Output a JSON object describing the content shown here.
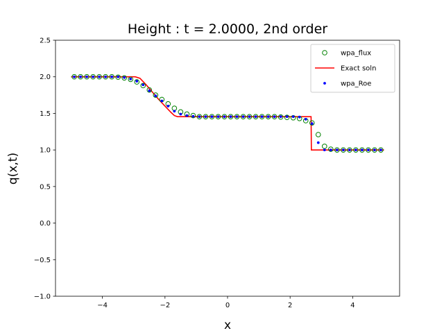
{
  "chart_data": {
    "type": "scatter",
    "title": "Height : t = 2.0000, 2nd order",
    "xlabel": "x",
    "ylabel": "q(x,t)",
    "xlim": [
      -5.5,
      5.5
    ],
    "ylim": [
      -1.0,
      2.5
    ],
    "xticks": [
      -4,
      -2,
      0,
      2,
      4
    ],
    "xtick_labels": [
      "−4",
      "−2",
      "0",
      "2",
      "4"
    ],
    "yticks": [
      -1.0,
      -0.5,
      0.0,
      0.5,
      1.0,
      1.5,
      2.0,
      2.5
    ],
    "ytick_labels": [
      "−1.0",
      "−0.5",
      "0.0",
      "0.5",
      "1.0",
      "1.5",
      "2.0",
      "2.5"
    ],
    "grid": false,
    "legend_position": "top-right",
    "x": [
      -4.9,
      -4.7,
      -4.5,
      -4.3,
      -4.1,
      -3.9,
      -3.7,
      -3.5,
      -3.3,
      -3.1,
      -2.9,
      -2.7,
      -2.5,
      -2.3,
      -2.1,
      -1.9,
      -1.7,
      -1.5,
      -1.3,
      -1.1,
      -0.9,
      -0.7,
      -0.5,
      -0.3,
      -0.1,
      0.1,
      0.3,
      0.5,
      0.7,
      0.9,
      1.1,
      1.3,
      1.5,
      1.7,
      1.9,
      2.1,
      2.3,
      2.5,
      2.7,
      2.9,
      3.1,
      3.3,
      3.5,
      3.7,
      3.9,
      4.1,
      4.3,
      4.5,
      4.7,
      4.9
    ],
    "series": [
      {
        "name": "wpa_flux",
        "style": "open-circle",
        "color": "#008000",
        "values": [
          2.0,
          2.0,
          2.0,
          2.0,
          2.0,
          2.0,
          2.0,
          1.995,
          1.985,
          1.965,
          1.93,
          1.88,
          1.82,
          1.75,
          1.69,
          1.63,
          1.57,
          1.52,
          1.49,
          1.47,
          1.455,
          1.455,
          1.455,
          1.455,
          1.455,
          1.455,
          1.455,
          1.455,
          1.455,
          1.455,
          1.455,
          1.455,
          1.455,
          1.45,
          1.445,
          1.44,
          1.43,
          1.4,
          1.37,
          1.21,
          1.05,
          1.01,
          1.0,
          1.0,
          1.0,
          1.0,
          1.0,
          1.0,
          1.0,
          1.0
        ]
      },
      {
        "name": "wpa_Roe",
        "style": "dot",
        "color": "#0000ff",
        "values": [
          2.0,
          2.0,
          2.0,
          2.0,
          2.0,
          2.0,
          2.0,
          2.0,
          1.99,
          1.97,
          1.94,
          1.89,
          1.81,
          1.74,
          1.67,
          1.6,
          1.53,
          1.49,
          1.47,
          1.46,
          1.455,
          1.455,
          1.455,
          1.455,
          1.455,
          1.455,
          1.455,
          1.455,
          1.455,
          1.455,
          1.455,
          1.455,
          1.455,
          1.455,
          1.455,
          1.455,
          1.45,
          1.42,
          1.36,
          1.1,
          1.0,
          1.0,
          1.0,
          1.0,
          1.0,
          1.0,
          1.0,
          1.0,
          1.0,
          1.0
        ]
      }
    ],
    "exact": {
      "name": "Exact soln",
      "color": "#ff0000",
      "x": [
        -5.0,
        -2.95,
        -2.8,
        -2.6,
        -2.4,
        -2.2,
        -2.0,
        -1.8,
        -1.7,
        -1.6,
        -1.5,
        2.6,
        2.67,
        2.68,
        5.0
      ],
      "y": [
        2.0,
        2.0,
        1.98,
        1.89,
        1.79,
        1.69,
        1.6,
        1.51,
        1.47,
        1.455,
        1.455,
        1.455,
        1.455,
        1.0,
        1.0
      ]
    },
    "legend": [
      "wpa_flux",
      "Exact soln",
      "wpa_Roe"
    ]
  }
}
